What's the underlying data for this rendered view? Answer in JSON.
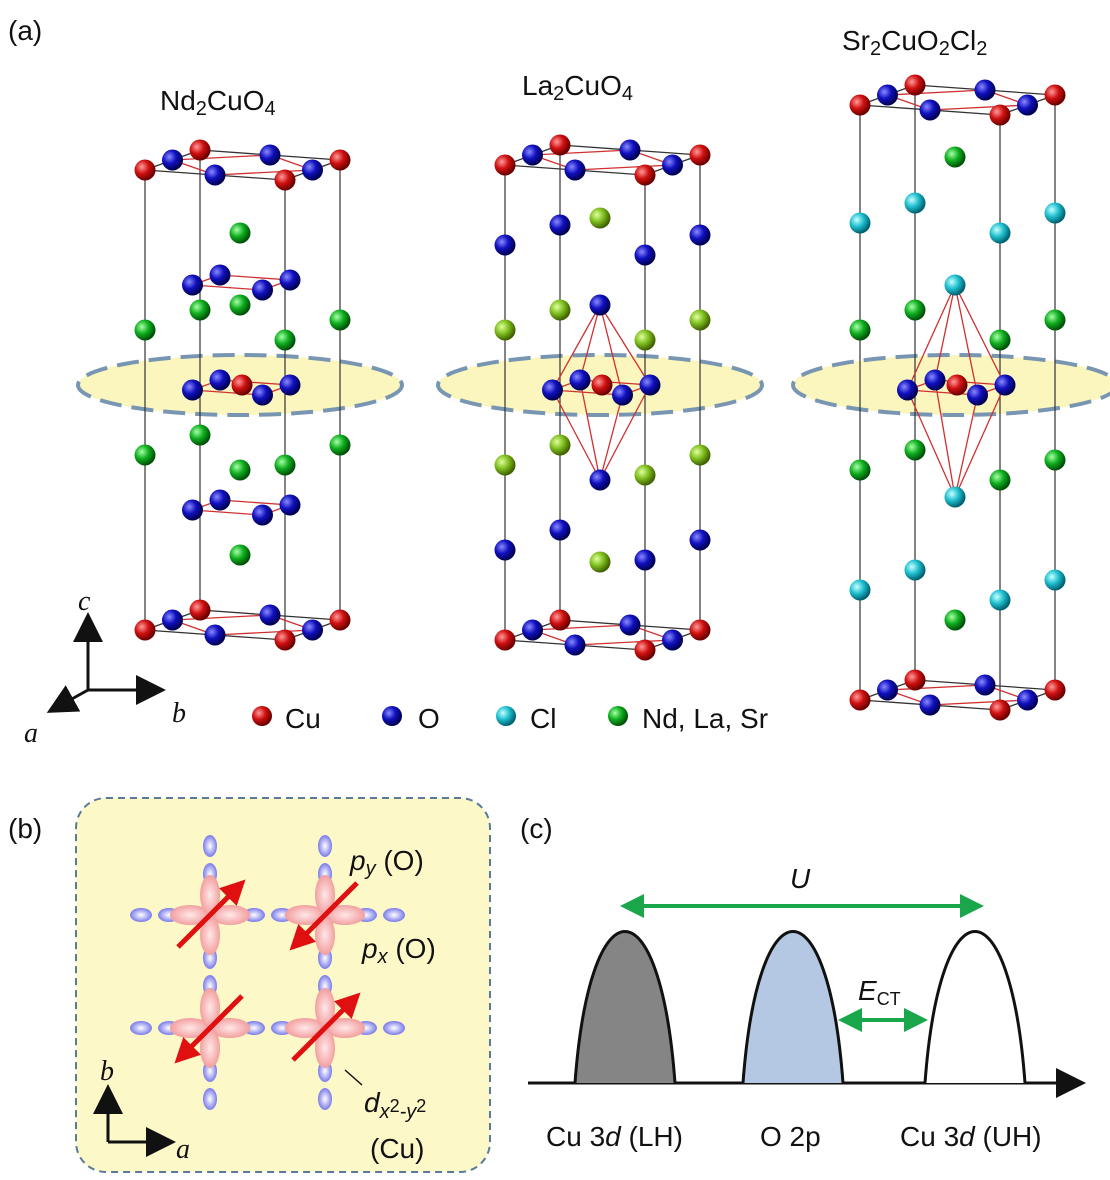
{
  "panel_a": {
    "label": "(a)",
    "structures": [
      {
        "formula": [
          "Nd",
          "2",
          "CuO",
          "4"
        ]
      },
      {
        "formula": [
          "La",
          "2",
          "CuO",
          "4"
        ]
      },
      {
        "formula": [
          "Sr",
          "2",
          "CuO",
          "2",
          "Cl",
          "2"
        ]
      }
    ],
    "axes": {
      "c": "c",
      "b": "b",
      "a": "a"
    },
    "legend": [
      {
        "name": "Cu"
      },
      {
        "name": "O"
      },
      {
        "name": "Cl"
      },
      {
        "name": "Nd, La, Sr"
      }
    ]
  },
  "panel_b": {
    "label": "(b)",
    "py": [
      "p",
      "y",
      " (O)"
    ],
    "px": [
      "p",
      "x",
      " (O)"
    ],
    "d": [
      "d",
      "x",
      "2",
      "-y",
      "2"
    ],
    "cu": "(Cu)",
    "axes": {
      "b": "b",
      "a": "a"
    }
  },
  "panel_c": {
    "label": "(c)",
    "U": "U",
    "ect": [
      "E",
      "CT"
    ],
    "bands": [
      [
        "Cu 3",
        "d",
        " (LH)"
      ],
      [
        "O 2p"
      ],
      [
        "Cu 3",
        "d",
        " (UH)"
      ]
    ]
  }
}
